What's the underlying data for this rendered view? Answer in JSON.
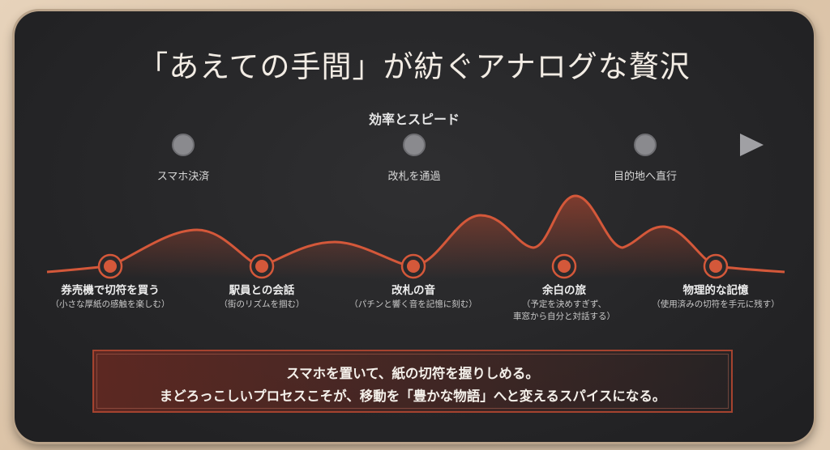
{
  "title": "「あえての手間」が紡ぐアナログな贅沢",
  "top_axis": {
    "caption": "効率とスピード",
    "stops": [
      "スマホ決済",
      "改札を通過",
      "目的地へ直行"
    ]
  },
  "experiences": [
    {
      "label": "券売機で切符を買う",
      "sub": "（小さな厚紙の感触を楽しむ）"
    },
    {
      "label": "駅員との会話",
      "sub": "（街のリズムを掴む）"
    },
    {
      "label": "改札の音",
      "sub": "（パチンと響く音を記憶に刻む）"
    },
    {
      "label": "余白の旅",
      "sub": "（予定を決めすぎず、",
      "sub2": "車窓から自分と対話する）"
    },
    {
      "label": "物理的な記憶",
      "sub": "（使用済みの切符を手元に残す）"
    }
  ],
  "message": {
    "line1": "スマホを置いて、紙の切符を握りしめる。",
    "line2": "まどろっこしいプロセスこそが、移動を「豊かな物語」へと変えるスパイスになる。"
  },
  "colors": {
    "accent": "#d4583a",
    "axis": "#8e8e92",
    "board": "#262628"
  }
}
